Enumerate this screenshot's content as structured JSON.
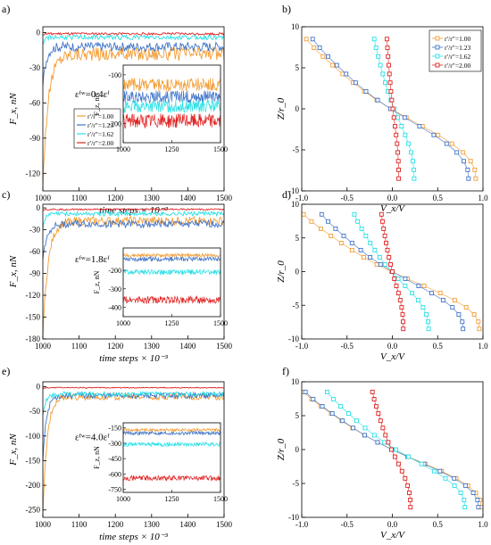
{
  "colors": {
    "orange": "#f39c34",
    "blue": "#3f74c9",
    "cyan": "#27e0e6",
    "red": "#e02020"
  },
  "legend_entries": [
    "r′/r″=1.00",
    "r′/r″=1.23",
    "r′/r″=1.62",
    "r′/r″=2.00"
  ],
  "chart_data": [
    {
      "panel": "a)",
      "type": "line",
      "xlabel": "time steps × 10⁻³",
      "ylabel": "F_x, nN",
      "annotation": "εᶠʷ=0.4εᶠ",
      "xlim": [
        1000,
        1500
      ],
      "ylim": [
        -135,
        5
      ],
      "xticks": [
        "1000",
        "1100",
        "1200",
        "1300",
        "1400",
        "1500"
      ],
      "yticks": [
        "0",
        "-30",
        "-60",
        "-90",
        "-120"
      ],
      "series": [
        {
          "name": "r′/r″=1.00",
          "color": "orange",
          "start": -130,
          "level": -18,
          "noise": 6,
          "tau": 15
        },
        {
          "name": "r′/r″=1.23",
          "color": "blue",
          "start": -45,
          "level": -12,
          "noise": 4,
          "tau": 10
        },
        {
          "name": "r′/r″=1.62",
          "color": "cyan",
          "start": -10,
          "level": -4,
          "noise": 2,
          "tau": 5
        },
        {
          "name": "r′/r″=2.00",
          "color": "red",
          "start": -2,
          "level": -1,
          "noise": 1,
          "tau": 3
        }
      ],
      "inset": {
        "ylabel": "F_z, nN",
        "xlim": [
          1000,
          1500
        ],
        "ylim": [
          -240,
          -80
        ],
        "xticks": [
          "1000",
          "1250",
          "1500"
        ],
        "yticks": [
          "-100",
          "-200"
        ],
        "series": [
          {
            "color": "orange",
            "level": -120,
            "noise": 14
          },
          {
            "color": "blue",
            "level": -145,
            "noise": 13
          },
          {
            "color": "cyan",
            "level": -165,
            "noise": 13
          },
          {
            "color": "red",
            "level": -195,
            "noise": 15
          }
        ]
      }
    },
    {
      "panel": "b)",
      "type": "scatter",
      "xlabel": "V_x/V",
      "ylabel": "Z/r_0",
      "xlim": [
        -1.0,
        1.0
      ],
      "ylim": [
        -10,
        10
      ],
      "xticks": [
        "-1.0",
        "-0.5",
        "0.0",
        "0.5",
        "1.0"
      ],
      "yticks": [
        "10",
        "5",
        "0",
        "-5",
        "-10"
      ],
      "legend": "top-right",
      "series": [
        {
          "name": "r′/r″=1.00",
          "color": "orange",
          "v_top": -0.95,
          "v_bottom": 0.92,
          "points": 17
        },
        {
          "name": "r′/r″=1.23",
          "color": "blue",
          "v_top": -0.88,
          "v_bottom": 0.84,
          "points": 17
        },
        {
          "name": "r′/r″=1.62",
          "color": "cyan",
          "v_top": -0.2,
          "v_bottom": 0.24,
          "points": 17
        },
        {
          "name": "r′/r″=2.00",
          "color": "red",
          "v_top": -0.06,
          "v_bottom": 0.07,
          "points": 17
        }
      ]
    },
    {
      "panel": "c)",
      "type": "line",
      "xlabel": "time steps × 10⁻³",
      "ylabel": "F_x, nN",
      "annotation": "εᶠʷ=1.8εᶠ",
      "xlim": [
        1000,
        1500
      ],
      "ylim": [
        -180,
        5
      ],
      "xticks": [
        "1000",
        "1100",
        "1200",
        "1300",
        "1400",
        "1500"
      ],
      "yticks": [
        "0",
        "-30",
        "-60",
        "-90",
        "-120",
        "-150",
        "-180"
      ],
      "series": [
        {
          "name": "r′/r″=1.00",
          "color": "orange",
          "start": -175,
          "level": -18,
          "noise": 6,
          "tau": 15
        },
        {
          "name": "r′/r″=1.23",
          "color": "blue",
          "start": -70,
          "level": -22,
          "noise": 5,
          "tau": 12
        },
        {
          "name": "r′/r″=1.62",
          "color": "cyan",
          "start": -30,
          "level": -8,
          "noise": 3,
          "tau": 6
        },
        {
          "name": "r′/r″=2.00",
          "color": "red",
          "start": -3,
          "level": -2,
          "noise": 1,
          "tau": 3
        }
      ],
      "inset": {
        "ylabel": "F_z, nN",
        "xlim": [
          1000,
          1500
        ],
        "ylim": [
          -450,
          -80
        ],
        "xticks": [
          "1000",
          "1250",
          "1500"
        ],
        "yticks": [
          "-200",
          "-300",
          "-400"
        ],
        "series": [
          {
            "color": "orange",
            "level": -120,
            "noise": 10
          },
          {
            "color": "blue",
            "level": -140,
            "noise": 12
          },
          {
            "color": "cyan",
            "level": -210,
            "noise": 14
          },
          {
            "color": "red",
            "level": -360,
            "noise": 20
          }
        ]
      }
    },
    {
      "panel": "d)",
      "type": "scatter",
      "xlabel": "V_x/V",
      "ylabel": "Z/r_0",
      "xlim": [
        -1.0,
        1.0
      ],
      "ylim": [
        -10,
        10
      ],
      "xticks": [
        "-1.0",
        "-0.5",
        "0.0",
        "0.5",
        "1.0"
      ],
      "yticks": [
        "10",
        "5",
        "0",
        "-5",
        "-10"
      ],
      "series": [
        {
          "name": "r′/r″=1.00",
          "color": "orange",
          "v_top": -0.98,
          "v_bottom": 0.96,
          "points": 17
        },
        {
          "name": "r′/r″=1.23",
          "color": "blue",
          "v_top": -0.78,
          "v_bottom": 0.78,
          "points": 17
        },
        {
          "name": "r′/r″=1.62",
          "color": "cyan",
          "v_top": -0.42,
          "v_bottom": 0.4,
          "points": 17
        },
        {
          "name": "r′/r″=2.00",
          "color": "red",
          "v_top": -0.12,
          "v_bottom": 0.12,
          "points": 17
        }
      ]
    },
    {
      "panel": "e)",
      "type": "line",
      "xlabel": "time steps × 10⁻³",
      "ylabel": "F_x, nN",
      "annotation": "εᶠʷ=4.0εᶠ",
      "xlim": [
        1000,
        1500
      ],
      "ylim": [
        -265,
        10
      ],
      "xticks": [
        "1000",
        "1100",
        "1200",
        "1300",
        "1400",
        "1500"
      ],
      "yticks": [
        "0",
        "-50",
        "-100",
        "-150",
        "-200",
        "-250"
      ],
      "series": [
        {
          "name": "r′/r″=1.00",
          "color": "orange",
          "start": -260,
          "level": -20,
          "noise": 7,
          "tau": 12
        },
        {
          "name": "r′/r″=1.23",
          "color": "blue",
          "start": -150,
          "level": -18,
          "noise": 6,
          "tau": 10
        },
        {
          "name": "r′/r″=1.62",
          "color": "cyan",
          "start": -60,
          "level": -15,
          "noise": 5,
          "tau": 8
        },
        {
          "name": "r′/r″=2.00",
          "color": "red",
          "start": -5,
          "level": -2,
          "noise": 1,
          "tau": 3
        }
      ],
      "inset": {
        "ylabel": "F_z, nN",
        "xlim": [
          1000,
          1500
        ],
        "ylim": [
          -780,
          -100
        ],
        "xticks": [
          "1000",
          "1250",
          "1500"
        ],
        "yticks": [
          "-150",
          "-300",
          "-450",
          "-600",
          "-750"
        ],
        "series": [
          {
            "color": "orange",
            "level": -170,
            "noise": 15
          },
          {
            "color": "blue",
            "level": -200,
            "noise": 18
          },
          {
            "color": "cyan",
            "level": -310,
            "noise": 22
          },
          {
            "color": "red",
            "level": -640,
            "noise": 25
          }
        ]
      }
    },
    {
      "panel": "f)",
      "type": "scatter",
      "xlabel": "V_x/V",
      "ylabel": "Z/r_0",
      "xlim": [
        -1.0,
        1.0
      ],
      "ylim": [
        -10,
        10
      ],
      "xticks": [
        "-1.0",
        "-0.5",
        "0.0",
        "0.5",
        "1.0"
      ],
      "yticks": [
        "10",
        "5",
        "0",
        "-5",
        "-10"
      ],
      "series": [
        {
          "name": "r′/r″=1.00",
          "color": "orange",
          "v_top": -0.98,
          "v_bottom": 0.98,
          "points": 17
        },
        {
          "name": "r′/r″=1.23",
          "color": "blue",
          "v_top": -0.96,
          "v_bottom": 0.95,
          "points": 17
        },
        {
          "name": "r′/r″=1.62",
          "color": "cyan",
          "v_top": -0.72,
          "v_bottom": 0.8,
          "points": 17
        },
        {
          "name": "r′/r″=2.00",
          "color": "red",
          "v_top": -0.22,
          "v_bottom": 0.2,
          "points": 17
        }
      ]
    }
  ]
}
